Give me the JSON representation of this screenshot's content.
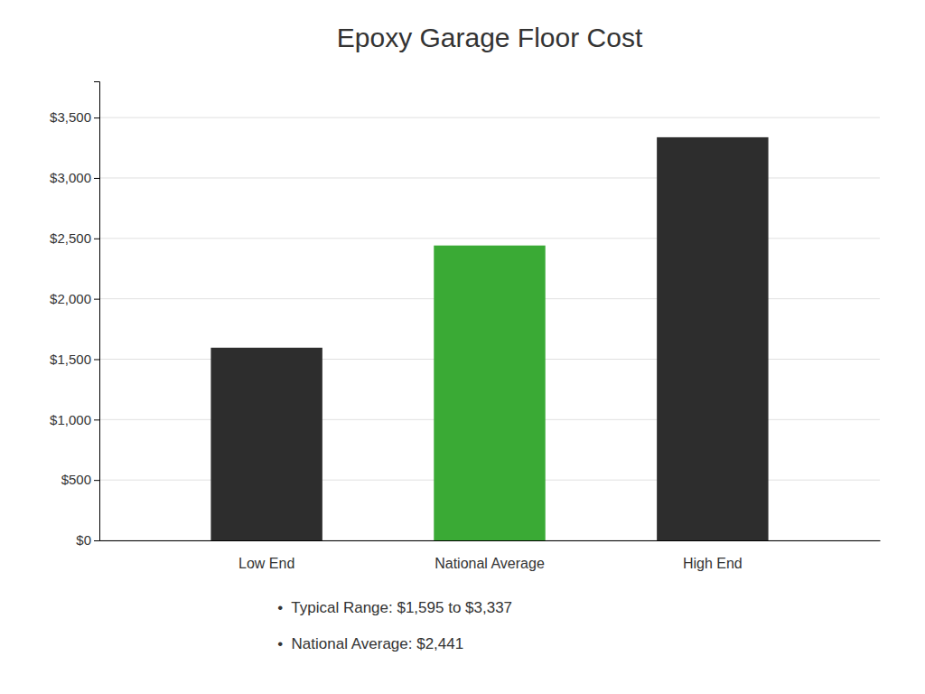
{
  "chart_data": {
    "type": "bar",
    "title": "Epoxy Garage Floor Cost",
    "categories": [
      "Low End",
      "National Average",
      "High End"
    ],
    "values": [
      1595,
      2441,
      3337
    ],
    "colors": [
      "#2d2d2d",
      "#3aaa35",
      "#2d2d2d"
    ],
    "ylim": [
      0,
      3800
    ],
    "yticks": [
      {
        "value": 0,
        "label": "$0"
      },
      {
        "value": 500,
        "label": "$500"
      },
      {
        "value": 1000,
        "label": "$1,000"
      },
      {
        "value": 1500,
        "label": "$1,500"
      },
      {
        "value": 2000,
        "label": "$2,000"
      },
      {
        "value": 2500,
        "label": "$2,500"
      },
      {
        "value": 3000,
        "label": "$3,000"
      },
      {
        "value": 3500,
        "label": "$3,500"
      }
    ],
    "grid": true,
    "annotations": [
      "•  Typical Range: $1,595 to $3,337",
      "•  National Average: $2,441"
    ]
  }
}
